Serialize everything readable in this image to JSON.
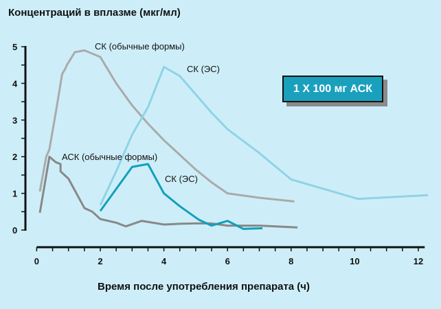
{
  "chart_data": {
    "type": "line",
    "title": "Концентраций в вплазме (мкг/мл)",
    "xlabel": "Время после употребления препарата (ч)",
    "ylabel": "",
    "xlim": [
      0,
      12.5
    ],
    "ylim": [
      0,
      5
    ],
    "xticks": [
      0,
      2,
      4,
      6,
      8,
      10,
      12
    ],
    "yticks": [
      0,
      1,
      2,
      3,
      4,
      5
    ],
    "annotation": "1 X 100 мг АСК",
    "series": [
      {
        "name": "СК (обычные формы)",
        "color": "#aaaaaa",
        "x": [
          0.1,
          0.3,
          0.4,
          0.6,
          0.8,
          0.9,
          0.95,
          1.2,
          1.5,
          2,
          2.5,
          3,
          3.5,
          4,
          4.5,
          5,
          5.5,
          6,
          7,
          8.1
        ],
        "y": [
          1.05,
          2.0,
          2.2,
          3.2,
          4.25,
          4.4,
          4.5,
          4.85,
          4.9,
          4.72,
          4.0,
          3.4,
          2.9,
          2.45,
          2.05,
          1.65,
          1.3,
          1.0,
          0.88,
          0.78
        ]
      },
      {
        "name": "СК (ЭС)",
        "color": "#8fd3e6",
        "x": [
          2,
          2.5,
          3,
          3.5,
          4,
          4.5,
          5,
          5.5,
          6,
          7,
          8,
          10.1,
          12.3
        ],
        "y": [
          0.68,
          1.6,
          2.6,
          3.35,
          4.45,
          4.2,
          3.7,
          3.2,
          2.75,
          2.1,
          1.38,
          0.85,
          0.95
        ]
      },
      {
        "name": "АСК (обычные формы)",
        "color": "#888888",
        "x": [
          0.1,
          0.4,
          0.6,
          0.75,
          0.75,
          1,
          1.5,
          1.75,
          2,
          2.5,
          2.8,
          3.3,
          4,
          4.5,
          5,
          5.5,
          6,
          7,
          8.2
        ],
        "y": [
          0.47,
          2.0,
          1.85,
          1.8,
          1.6,
          1.4,
          0.6,
          0.5,
          0.3,
          0.2,
          0.1,
          0.25,
          0.15,
          0.17,
          0.18,
          0.18,
          0.12,
          0.12,
          0.07
        ]
      },
      {
        "name": "СК (ЭС)",
        "color": "#129fba",
        "x": [
          2,
          3,
          3.5,
          4,
          4.5,
          5.1,
          5.5,
          6,
          6.5,
          7.1
        ],
        "y": [
          0.52,
          1.72,
          1.8,
          1.0,
          0.65,
          0.28,
          0.12,
          0.25,
          0.03,
          0.05
        ]
      }
    ]
  }
}
